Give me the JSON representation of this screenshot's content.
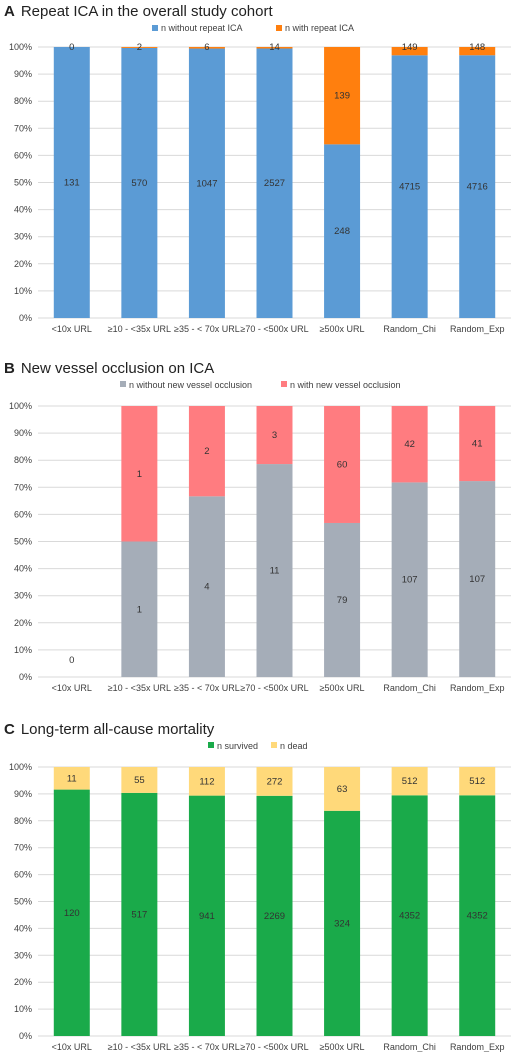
{
  "chart_data": [
    {
      "type": "bar",
      "stacked": "percent",
      "letter": "A",
      "title": "Repeat ICA in the overall study cohort",
      "categories": [
        "<10x URL",
        "≥10 - <35x URL",
        "≥35 - < 70x URL",
        "≥70 - <500x URL",
        "≥500x URL",
        "Random_Chi",
        "Random_Exp"
      ],
      "series": [
        {
          "name": "n without repeat ICA",
          "color": "#5b9bd5",
          "values": [
            131,
            570,
            1047,
            2527,
            248,
            4715,
            4716
          ]
        },
        {
          "name": "n with repeat ICA",
          "color": "#ff7f0e",
          "values": [
            0,
            2,
            6,
            14,
            139,
            149,
            148
          ]
        }
      ],
      "yticks": [
        "0%",
        "10%",
        "20%",
        "30%",
        "40%",
        "50%",
        "60%",
        "70%",
        "80%",
        "90%",
        "100%"
      ],
      "ylim": [
        0,
        100
      ],
      "legend": "top"
    },
    {
      "type": "bar",
      "stacked": "percent",
      "letter": "B",
      "title": "New vessel occlusion on ICA",
      "categories": [
        "<10x URL",
        "≥10 - <35x URL",
        "≥35 - < 70x URL",
        "≥70 - <500x URL",
        "≥500x URL",
        "Random_Chi",
        "Random_Exp"
      ],
      "series": [
        {
          "name": "n without new vessel occlusion",
          "color": "#a5adb8",
          "values": [
            0,
            1,
            4,
            11,
            79,
            107,
            107
          ]
        },
        {
          "name": "n with new vessel occlusion",
          "color": "#ff7c80",
          "values": [
            0,
            1,
            2,
            3,
            60,
            42,
            41
          ]
        }
      ],
      "yticks": [
        "0%",
        "10%",
        "20%",
        "30%",
        "40%",
        "50%",
        "60%",
        "70%",
        "80%",
        "90%",
        "100%"
      ],
      "ylim": [
        0,
        100
      ],
      "legend": "top"
    },
    {
      "type": "bar",
      "stacked": "percent",
      "letter": "C",
      "title": "Long-term all-cause mortality",
      "categories": [
        "<10x URL",
        "≥10 - <35x URL",
        "≥35 - < 70x URL",
        "≥70 - <500x URL",
        "≥500x URL",
        "Random_Chi",
        "Random_Exp"
      ],
      "series": [
        {
          "name": "n survived",
          "color": "#1aaa4a",
          "values": [
            120,
            517,
            941,
            2269,
            324,
            4352,
            4352
          ]
        },
        {
          "name": "n dead",
          "color": "#ffd97a",
          "values": [
            11,
            55,
            112,
            272,
            63,
            512,
            512
          ]
        }
      ],
      "yticks": [
        "0%",
        "10%",
        "20%",
        "30%",
        "40%",
        "50%",
        "60%",
        "70%",
        "80%",
        "90%",
        "100%"
      ],
      "ylim": [
        0,
        100
      ],
      "legend": "top"
    }
  ]
}
